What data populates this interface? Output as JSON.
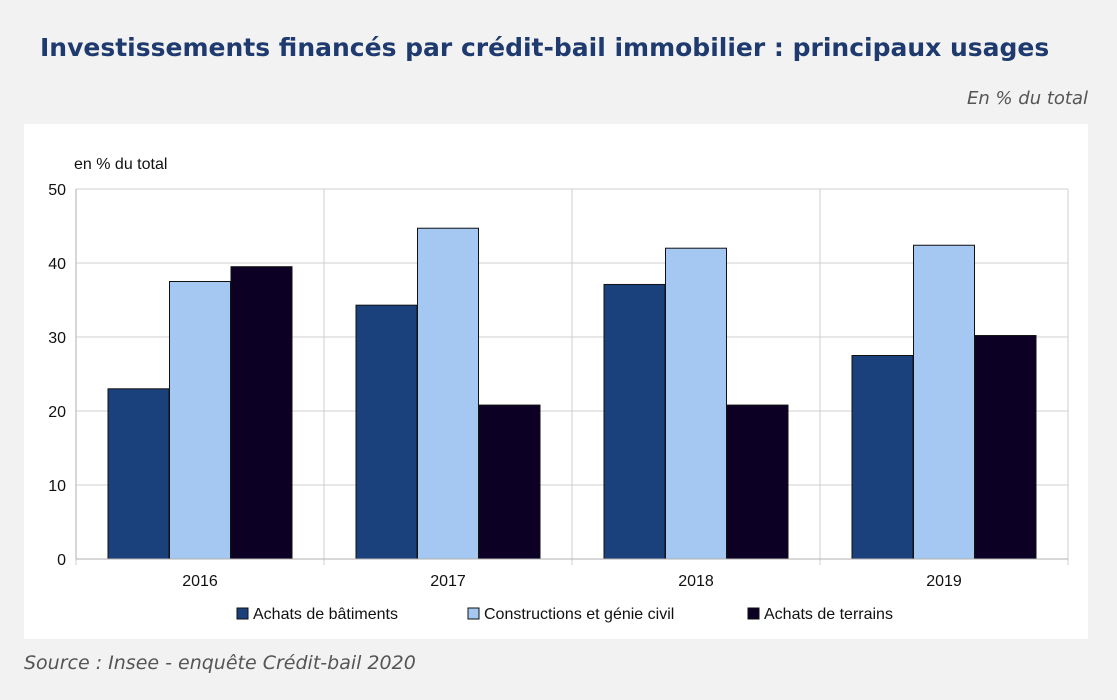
{
  "page": {
    "title": "Investissements financés par crédit-bail immobilier : principaux usages",
    "unit_note": "En % du total",
    "source": "Source : Insee - enquête Crédit-bail 2020"
  },
  "chart_data": {
    "type": "bar",
    "title": "",
    "ylabel": "en % du total",
    "xlabel": "",
    "categories": [
      "2016",
      "2017",
      "2018",
      "2019"
    ],
    "ylim": [
      0,
      50
    ],
    "yticks": [
      0,
      10,
      20,
      30,
      40,
      50
    ],
    "grid": true,
    "legend_position": "bottom",
    "series": [
      {
        "name": "Achats de bâtiments",
        "color": "#1b417d",
        "values": [
          23,
          34.3,
          37.1,
          27.5
        ]
      },
      {
        "name": "Constructions et génie civil",
        "color": "#a4c8f2",
        "values": [
          37.5,
          44.7,
          42,
          42.4
        ]
      },
      {
        "name": "Achats de terrains",
        "color": "#0c0024",
        "values": [
          39.5,
          20.8,
          20.8,
          30.2
        ]
      }
    ]
  }
}
